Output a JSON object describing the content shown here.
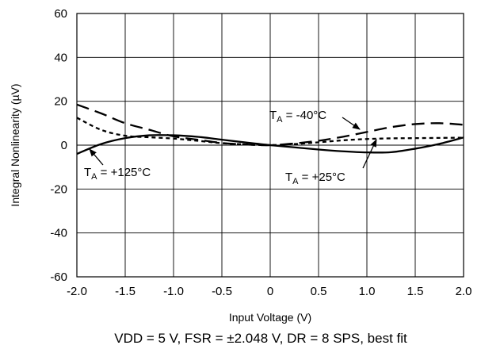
{
  "chart_data": {
    "type": "line",
    "title": "",
    "xlabel": "Input Voltage (V)",
    "ylabel": "Integral Nonlinearity (µV)",
    "caption": "VDD = 5 V, FSR = ±2.048 V, DR = 8 SPS, best fit",
    "xlim": [
      -2.0,
      2.0
    ],
    "ylim": [
      -60,
      60
    ],
    "xticks": [
      "-2.0",
      "-1.5",
      "-1.0",
      "-0.5",
      "0",
      "0.5",
      "1.0",
      "1.5",
      "2.0"
    ],
    "yticks": [
      "60",
      "40",
      "20",
      "0",
      "-20",
      "-40",
      "-60"
    ],
    "grid": true,
    "series": [
      {
        "name": "TA = -40°C",
        "style": "long-dash",
        "color": "#000000",
        "x": [
          -2.0,
          -1.75,
          -1.5,
          -1.25,
          -1.0,
          -0.75,
          -0.5,
          -0.25,
          0.0,
          0.25,
          0.5,
          0.75,
          1.0,
          1.25,
          1.5,
          1.75,
          2.0
        ],
        "y": [
          18.5,
          14.5,
          10.0,
          7.0,
          4.0,
          2.5,
          1.0,
          0.3,
          0.0,
          0.8,
          2.0,
          3.8,
          6.0,
          8.2,
          9.6,
          10.0,
          9.3
        ]
      },
      {
        "name": "TA = +25°C",
        "style": "short-dash",
        "color": "#000000",
        "x": [
          -2.0,
          -1.75,
          -1.5,
          -1.25,
          -1.0,
          -0.75,
          -0.5,
          -0.25,
          0.0,
          0.25,
          0.5,
          0.75,
          1.0,
          1.25,
          1.5,
          1.75,
          2.0
        ],
        "y": [
          12.5,
          7.0,
          4.3,
          3.6,
          3.0,
          2.0,
          0.9,
          0.3,
          0.0,
          0.5,
          1.3,
          2.2,
          2.8,
          3.1,
          3.2,
          3.3,
          3.4
        ]
      },
      {
        "name": "TA = +125°C",
        "style": "solid",
        "color": "#000000",
        "x": [
          -2.0,
          -1.75,
          -1.5,
          -1.25,
          -1.0,
          -0.75,
          -0.5,
          -0.25,
          0.0,
          0.25,
          0.5,
          0.75,
          1.0,
          1.25,
          1.5,
          1.75,
          2.0
        ],
        "y": [
          -4.0,
          0.5,
          3.2,
          4.5,
          4.5,
          3.8,
          2.5,
          1.2,
          0.0,
          -1.0,
          -2.0,
          -2.8,
          -3.3,
          -3.2,
          -1.6,
          0.6,
          3.5
        ]
      }
    ],
    "annotations": [
      {
        "main": "T",
        "sub": "A",
        "rest": " = -40°C",
        "series": "TA = -40°C"
      },
      {
        "main": "T",
        "sub": "A",
        "rest": " = +25°C",
        "series": "TA = +25°C"
      },
      {
        "main": "T",
        "sub": "A",
        "rest": " = +125°C",
        "series": "TA = +125°C"
      }
    ]
  }
}
